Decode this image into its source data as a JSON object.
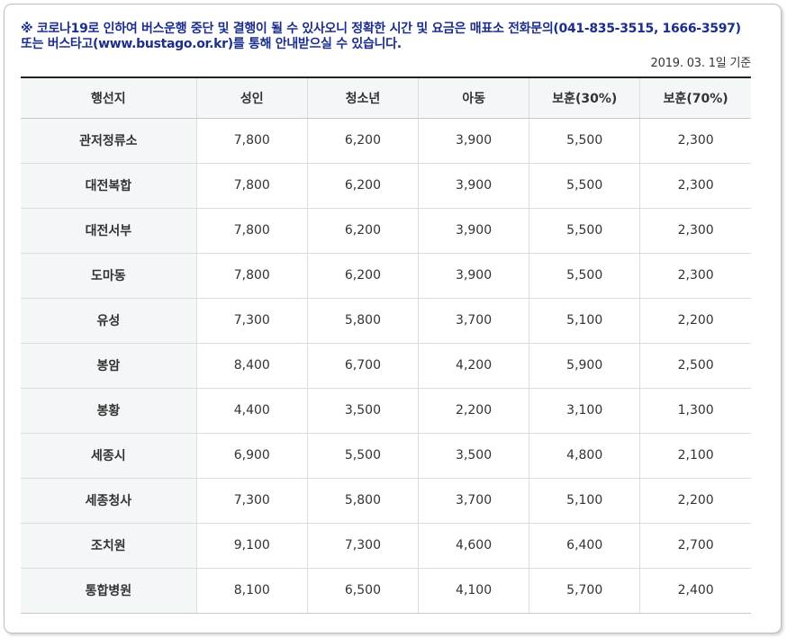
{
  "notice": {
    "text": "※ 코로나19로 인하여 버스운행 중단 및 결행이 될 수 있사오니 정확한 시간 및 요금은 매표소 전화문의(041-835-3515, 1666-3597) 또는 버스타고(www.bustago.or.kr)를 통해 안내받으실 수 있습니다.",
    "date_note": "2019. 03. 1일 기준"
  },
  "colors": {
    "notice_text": "#1c2e8c",
    "header_bg": "#f4f7f8",
    "table_top_border": "#222222"
  },
  "table": {
    "headers": [
      "행선지",
      "성인",
      "청소년",
      "아동",
      "보훈(30%)",
      "보훈(70%)"
    ],
    "rows": [
      {
        "dest": "관저정류소",
        "values": [
          "7,800",
          "6,200",
          "3,900",
          "5,500",
          "2,300"
        ]
      },
      {
        "dest": "대전복합",
        "values": [
          "7,800",
          "6,200",
          "3,900",
          "5,500",
          "2,300"
        ]
      },
      {
        "dest": "대전서부",
        "values": [
          "7,800",
          "6,200",
          "3,900",
          "5,500",
          "2,300"
        ]
      },
      {
        "dest": "도마동",
        "values": [
          "7,800",
          "6,200",
          "3,900",
          "5,500",
          "2,300"
        ]
      },
      {
        "dest": "유성",
        "values": [
          "7,300",
          "5,800",
          "3,700",
          "5,100",
          "2,200"
        ]
      },
      {
        "dest": "봉암",
        "values": [
          "8,400",
          "6,700",
          "4,200",
          "5,900",
          "2,500"
        ]
      },
      {
        "dest": "봉황",
        "values": [
          "4,400",
          "3,500",
          "2,200",
          "3,100",
          "1,300"
        ]
      },
      {
        "dest": "세종시",
        "values": [
          "6,900",
          "5,500",
          "3,500",
          "4,800",
          "2,100"
        ]
      },
      {
        "dest": "세종청사",
        "values": [
          "7,300",
          "5,800",
          "3,700",
          "5,100",
          "2,200"
        ]
      },
      {
        "dest": "조치원",
        "values": [
          "9,100",
          "7,300",
          "4,600",
          "6,400",
          "2,700"
        ]
      },
      {
        "dest": "통합병원",
        "values": [
          "8,100",
          "6,500",
          "4,100",
          "5,700",
          "2,400"
        ]
      }
    ]
  }
}
